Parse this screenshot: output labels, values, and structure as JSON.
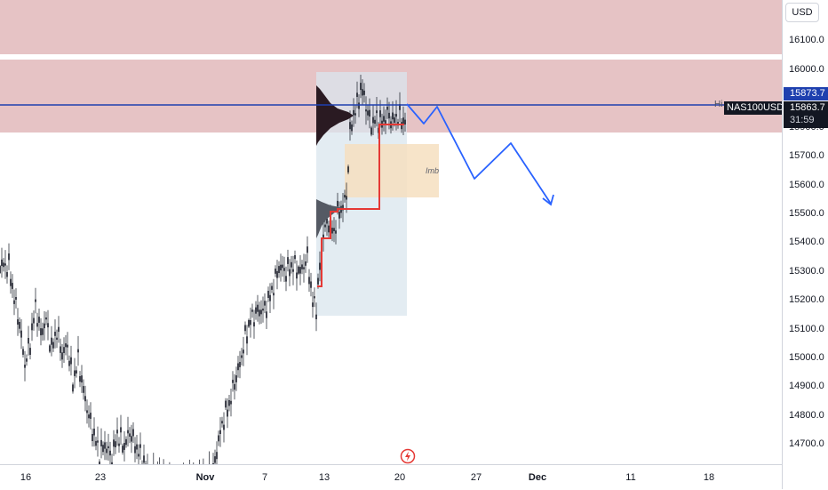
{
  "price_axis": {
    "currency": "USD",
    "ticks": [
      "16100.0",
      "16000.0",
      "15900.0",
      "15700.0",
      "15600.0",
      "15500.0",
      "15400.0",
      "15300.0",
      "15200.0",
      "15100.0",
      "15000.0",
      "14900.0",
      "14800.0",
      "14700.0"
    ],
    "level_badge": "15873.7",
    "current_badge": "15863.7",
    "countdown": "31:59"
  },
  "time_axis": {
    "ticks": [
      {
        "label": "16",
        "bold": false
      },
      {
        "label": "23",
        "bold": false
      },
      {
        "label": "Nov",
        "bold": true
      },
      {
        "label": "7",
        "bold": false
      },
      {
        "label": "13",
        "bold": false
      },
      {
        "label": "20",
        "bold": false
      },
      {
        "label": "27",
        "bold": false
      },
      {
        "label": "Dec",
        "bold": true
      },
      {
        "label": "11",
        "bold": false
      },
      {
        "label": "18",
        "bold": false
      }
    ]
  },
  "chart": {
    "symbol": "NAS100USD",
    "horizontal_line_label": "Hi",
    "zone_label": "Imb",
    "colors": {
      "resistance_zone": "#e6c3c5",
      "volume_profile_bg": "#d9e6ee",
      "imbalance_box": "#f6dfbf",
      "level_line": "#1e40af",
      "projection_path": "#2962ff",
      "step_line": "#e53935",
      "candles": "#131722"
    },
    "icons": {
      "logo": "tradingview-logo-icon",
      "projection_end": "arrow-down-icon"
    }
  }
}
